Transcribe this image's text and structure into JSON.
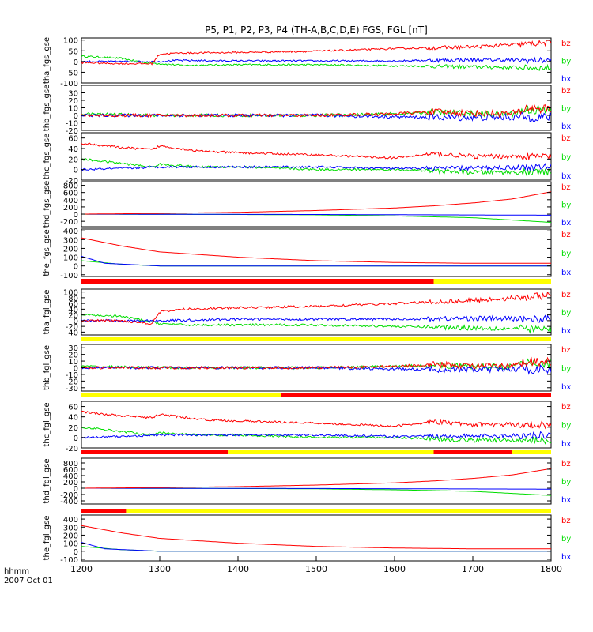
{
  "chart_data": {
    "type": "line",
    "title": "P5, P1, P2, P3, P4 (TH-A,B,C,D,E) FGS, FGL [nT]",
    "x_axis": {
      "range": [
        1200,
        1800
      ],
      "ticks": [
        1200,
        1300,
        1400,
        1500,
        1600,
        1700,
        1800
      ],
      "label_top": "hhmm",
      "label_bottom": "2007 Oct 01"
    },
    "series_colors": {
      "bz": "#ff0000",
      "by": "#00dd00",
      "bx": "#0000ff"
    },
    "legend": [
      "bz",
      "by",
      "bx"
    ],
    "panels": [
      {
        "ylabel": "tha_fgs_gse",
        "yrange": [
          -100,
          110
        ],
        "ticks": [
          100,
          50,
          0,
          -50,
          -100
        ],
        "noise": 4,
        "series": [
          {
            "name": "bz",
            "x": [
              1200,
              1250,
              1290,
              1300,
              1330,
              1400,
              1500,
              1600,
              1700,
              1800
            ],
            "y": [
              -5,
              -10,
              -10,
              35,
              40,
              42,
              48,
              60,
              68,
              88
            ]
          },
          {
            "name": "by",
            "x": [
              1200,
              1250,
              1280,
              1300,
              1330,
              1400,
              1500,
              1600,
              1700,
              1800
            ],
            "y": [
              25,
              15,
              -5,
              -10,
              -18,
              -15,
              -15,
              -20,
              -25,
              -30
            ]
          },
          {
            "name": "bx",
            "x": [
              1200,
              1300,
              1320,
              1400,
              1500,
              1600,
              1700,
              1800
            ],
            "y": [
              0,
              0,
              5,
              3,
              3,
              3,
              8,
              5
            ]
          }
        ]
      },
      {
        "ylabel": "thb_fgs_gse",
        "yrange": [
          -20,
          40
        ],
        "ticks": [
          30,
          20,
          10,
          0,
          -10,
          -20
        ],
        "noise": 2,
        "series": [
          {
            "name": "bz",
            "x": [
              1200,
              1300,
              1400,
              1500,
              1600,
              1650,
              1700,
              1750,
              1770,
              1800
            ],
            "y": [
              0,
              0,
              0,
              0,
              2,
              5,
              3,
              2,
              10,
              8
            ]
          },
          {
            "name": "by",
            "x": [
              1200,
              1300,
              1400,
              1500,
              1600,
              1650,
              1700,
              1750,
              1770,
              1800
            ],
            "y": [
              2,
              0,
              0,
              0,
              2,
              4,
              2,
              2,
              8,
              6
            ]
          },
          {
            "name": "bx",
            "x": [
              1200,
              1300,
              1400,
              1500,
              1600,
              1700,
              1800
            ],
            "y": [
              0,
              0,
              0,
              0,
              -2,
              -3,
              -2
            ]
          }
        ]
      },
      {
        "ylabel": "thc_fgs_gse",
        "yrange": [
          -20,
          70
        ],
        "ticks": [
          60,
          40,
          20,
          0,
          -20
        ],
        "noise": 2,
        "series": [
          {
            "name": "bz",
            "x": [
              1200,
              1250,
              1290,
              1300,
              1350,
              1400,
              1500,
              1600,
              1650,
              1700,
              1800
            ],
            "y": [
              50,
              42,
              38,
              45,
              35,
              32,
              28,
              22,
              30,
              25,
              25
            ]
          },
          {
            "name": "by",
            "x": [
              1200,
              1250,
              1290,
              1300,
              1350,
              1400,
              1500,
              1600,
              1700,
              1800
            ],
            "y": [
              20,
              12,
              5,
              10,
              5,
              5,
              0,
              0,
              -5,
              -5
            ]
          },
          {
            "name": "bx",
            "x": [
              1200,
              1250,
              1300,
              1400,
              1500,
              1600,
              1700,
              1800
            ],
            "y": [
              0,
              2,
              5,
              5,
              5,
              2,
              3,
              5
            ]
          }
        ]
      },
      {
        "ylabel": "thd_fgs_gse",
        "yrange": [
          -350,
          900
        ],
        "ticks": [
          800,
          600,
          400,
          200,
          0,
          -200
        ],
        "noise": 0,
        "series": [
          {
            "name": "bz",
            "x": [
              1200,
              1300,
              1400,
              1500,
              1600,
              1650,
              1700,
              1750,
              1800
            ],
            "y": [
              0,
              20,
              50,
              100,
              170,
              230,
              310,
              420,
              620
            ]
          },
          {
            "name": "by",
            "x": [
              1200,
              1300,
              1400,
              1500,
              1600,
              1700,
              1800
            ],
            "y": [
              0,
              -5,
              -10,
              -20,
              -50,
              -100,
              -230
            ]
          },
          {
            "name": "bx",
            "x": [
              1200,
              1500,
              1800
            ],
            "y": [
              0,
              -10,
              -30
            ]
          }
        ]
      },
      {
        "ylabel": "the_fgs_gse",
        "yrange": [
          -120,
          420
        ],
        "ticks": [
          400,
          300,
          200,
          100,
          0,
          -100
        ],
        "noise": 0,
        "series": [
          {
            "name": "bz",
            "x": [
              1200,
              1250,
              1300,
              1350,
              1400,
              1500,
              1600,
              1700,
              1800
            ],
            "y": [
              320,
              230,
              160,
              130,
              100,
              60,
              40,
              30,
              30
            ]
          },
          {
            "name": "by",
            "x": [
              1200,
              1250,
              1300,
              1400,
              1500,
              1600,
              1700,
              1800
            ],
            "y": [
              60,
              20,
              0,
              0,
              0,
              0,
              0,
              0
            ]
          },
          {
            "name": "bx",
            "x": [
              1200,
              1230,
              1300,
              1400,
              1500,
              1800
            ],
            "y": [
              110,
              30,
              0,
              0,
              0,
              0
            ]
          }
        ]
      },
      {
        "ylabel": "tha_fgl_gse",
        "yrange": [
          -50,
          110
        ],
        "ticks": [
          100,
          80,
          60,
          40,
          20,
          0,
          -20,
          -40
        ],
        "noise": 4,
        "series": [
          {
            "name": "bz",
            "x": [
              1200,
              1250,
              1290,
              1300,
              1330,
              1400,
              1500,
              1600,
              1700,
              1800
            ],
            "y": [
              0,
              0,
              -10,
              30,
              40,
              45,
              50,
              60,
              70,
              88
            ]
          },
          {
            "name": "by",
            "x": [
              1200,
              1250,
              1280,
              1300,
              1330,
              1400,
              1500,
              1600,
              1700,
              1800
            ],
            "y": [
              20,
              15,
              0,
              -10,
              -15,
              -15,
              -15,
              -20,
              -25,
              -30
            ]
          },
          {
            "name": "bx",
            "x": [
              1200,
              1300,
              1400,
              1500,
              1600,
              1700,
              1800
            ],
            "y": [
              0,
              0,
              5,
              5,
              5,
              8,
              5
            ]
          }
        ]
      },
      {
        "ylabel": "thb_fgl_gse",
        "yrange": [
          -35,
          35
        ],
        "ticks": [
          30,
          20,
          10,
          0,
          -10,
          -20,
          -30
        ],
        "noise": 2,
        "series": [
          {
            "name": "bz",
            "x": [
              1200,
              1300,
              1400,
              1500,
              1600,
              1650,
              1700,
              1750,
              1770,
              1800
            ],
            "y": [
              0,
              0,
              0,
              0,
              2,
              5,
              3,
              2,
              10,
              8
            ]
          },
          {
            "name": "by",
            "x": [
              1200,
              1300,
              1400,
              1500,
              1600,
              1650,
              1700,
              1750,
              1770,
              1800
            ],
            "y": [
              2,
              0,
              0,
              0,
              2,
              4,
              2,
              2,
              8,
              6
            ]
          },
          {
            "name": "bx",
            "x": [
              1200,
              1300,
              1400,
              1500,
              1600,
              1700,
              1800
            ],
            "y": [
              0,
              0,
              0,
              0,
              -2,
              -3,
              -2
            ]
          }
        ]
      },
      {
        "ylabel": "thc_fgl_gse",
        "yrange": [
          -20,
          70
        ],
        "ticks": [
          60,
          40,
          20,
          0,
          -20
        ],
        "noise": 2,
        "series": [
          {
            "name": "bz",
            "x": [
              1200,
              1250,
              1290,
              1300,
              1350,
              1400,
              1500,
              1600,
              1650,
              1700,
              1800
            ],
            "y": [
              50,
              42,
              38,
              45,
              35,
              32,
              28,
              22,
              30,
              25,
              25
            ]
          },
          {
            "name": "by",
            "x": [
              1200,
              1250,
              1290,
              1300,
              1350,
              1400,
              1500,
              1600,
              1700,
              1800
            ],
            "y": [
              20,
              12,
              5,
              10,
              5,
              5,
              0,
              0,
              -5,
              -5
            ]
          },
          {
            "name": "bx",
            "x": [
              1200,
              1250,
              1300,
              1400,
              1500,
              1600,
              1700,
              1800
            ],
            "y": [
              0,
              2,
              5,
              5,
              5,
              2,
              3,
              5
            ]
          }
        ]
      },
      {
        "ylabel": "thd_fgl_gse",
        "yrange": [
          -500,
          950
        ],
        "ticks": [
          800,
          600,
          400,
          200,
          0,
          -200,
          -400
        ],
        "noise": 0,
        "series": [
          {
            "name": "bz",
            "x": [
              1200,
              1300,
              1400,
              1500,
              1600,
              1650,
              1700,
              1750,
              1800
            ],
            "y": [
              0,
              20,
              50,
              100,
              170,
              230,
              310,
              420,
              620
            ]
          },
          {
            "name": "by",
            "x": [
              1200,
              1300,
              1400,
              1500,
              1600,
              1700,
              1800
            ],
            "y": [
              0,
              -5,
              -10,
              -20,
              -50,
              -100,
              -230
            ]
          },
          {
            "name": "bx",
            "x": [
              1200,
              1500,
              1800
            ],
            "y": [
              0,
              -10,
              -30
            ]
          }
        ]
      },
      {
        "ylabel": "the_fgl_gse",
        "yrange": [
          -120,
          450
        ],
        "ticks": [
          400,
          300,
          200,
          100,
          0,
          -100
        ],
        "noise": 0,
        "series": [
          {
            "name": "bz",
            "x": [
              1200,
              1250,
              1300,
              1350,
              1400,
              1500,
              1600,
              1700,
              1800
            ],
            "y": [
              320,
              230,
              160,
              130,
              100,
              60,
              40,
              30,
              30
            ]
          },
          {
            "name": "by",
            "x": [
              1200,
              1250,
              1300,
              1400,
              1500,
              1600,
              1700,
              1800
            ],
            "y": [
              60,
              20,
              0,
              0,
              0,
              0,
              0,
              0
            ]
          },
          {
            "name": "bx",
            "x": [
              1200,
              1230,
              1300,
              1400,
              1500,
              1800
            ],
            "y": [
              110,
              30,
              0,
              0,
              0,
              0
            ]
          }
        ]
      }
    ],
    "mode_bars": [
      {
        "after_panel": 4,
        "segments": [
          {
            "x0": 1200,
            "x1": 1650,
            "color": "#ff0000"
          },
          {
            "x0": 1650,
            "x1": 1800,
            "color": "#ffff00"
          }
        ]
      },
      {
        "after_panel": 5,
        "segments": [
          {
            "x0": 1200,
            "x1": 1800,
            "color": "#ffff00"
          }
        ]
      },
      {
        "after_panel": 6,
        "segments": [
          {
            "x0": 1200,
            "x1": 1455,
            "color": "#ffff00"
          },
          {
            "x0": 1455,
            "x1": 1800,
            "color": "#ff0000"
          }
        ]
      },
      {
        "after_panel": 7,
        "segments": [
          {
            "x0": 1200,
            "x1": 1387,
            "color": "#ff0000"
          },
          {
            "x0": 1387,
            "x1": 1650,
            "color": "#ffff00"
          },
          {
            "x0": 1650,
            "x1": 1750,
            "color": "#ff0000"
          },
          {
            "x0": 1750,
            "x1": 1800,
            "color": "#ffff00"
          }
        ]
      },
      {
        "after_panel": 8,
        "segments": [
          {
            "x0": 1200,
            "x1": 1257,
            "color": "#ff0000"
          },
          {
            "x0": 1257,
            "x1": 1800,
            "color": "#ffff00"
          }
        ]
      }
    ]
  }
}
